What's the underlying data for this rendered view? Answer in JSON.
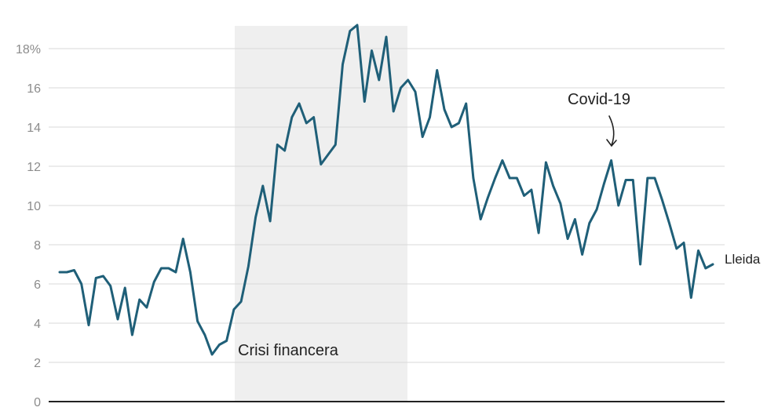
{
  "chart_data": {
    "type": "line",
    "ylim": [
      0,
      19
    ],
    "y_ticks": [
      {
        "value": 0,
        "label": "0"
      },
      {
        "value": 2,
        "label": "2"
      },
      {
        "value": 4,
        "label": "4"
      },
      {
        "value": 6,
        "label": "6"
      },
      {
        "value": 8,
        "label": "8"
      },
      {
        "value": 10,
        "label": "10"
      },
      {
        "value": 12,
        "label": "12"
      },
      {
        "value": 14,
        "label": "14"
      },
      {
        "value": 16,
        "label": "16"
      },
      {
        "value": 18,
        "label": "18%"
      }
    ],
    "grid": true,
    "shaded_region": {
      "label": "Crisi financera",
      "x_range": [
        24,
        46
      ]
    },
    "annotation": {
      "label": "Covid-19",
      "x": 70,
      "y": 12.3
    },
    "series": [
      {
        "name": "Lleida",
        "color": "#1f5f78",
        "values": [
          6.6,
          6.6,
          6.7,
          6.0,
          3.9,
          6.3,
          6.4,
          5.9,
          4.2,
          5.8,
          3.4,
          5.2,
          4.8,
          6.1,
          6.8,
          6.8,
          6.6,
          8.3,
          6.6,
          4.1,
          3.4,
          2.4,
          2.9,
          3.1,
          4.7,
          5.1,
          6.9,
          9.4,
          11.0,
          9.2,
          13.1,
          12.8,
          14.5,
          15.2,
          14.2,
          14.5,
          12.1,
          12.6,
          13.1,
          17.2,
          18.9,
          19.2,
          15.3,
          17.9,
          16.4,
          18.6,
          14.8,
          16.0,
          16.4,
          15.8,
          13.5,
          14.5,
          16.9,
          14.9,
          14.0,
          14.2,
          15.2,
          11.4,
          9.3,
          10.4,
          11.4,
          12.3,
          11.4,
          11.4,
          10.5,
          10.8,
          8.6,
          12.2,
          11.0,
          10.1,
          8.3,
          9.3,
          7.5,
          9.1,
          9.8,
          11.1,
          12.3,
          10.0,
          11.3,
          11.3,
          7.0,
          11.4,
          11.4,
          10.3,
          9.1,
          7.8,
          8.1,
          5.3,
          7.7,
          6.8,
          7.0
        ]
      }
    ]
  }
}
